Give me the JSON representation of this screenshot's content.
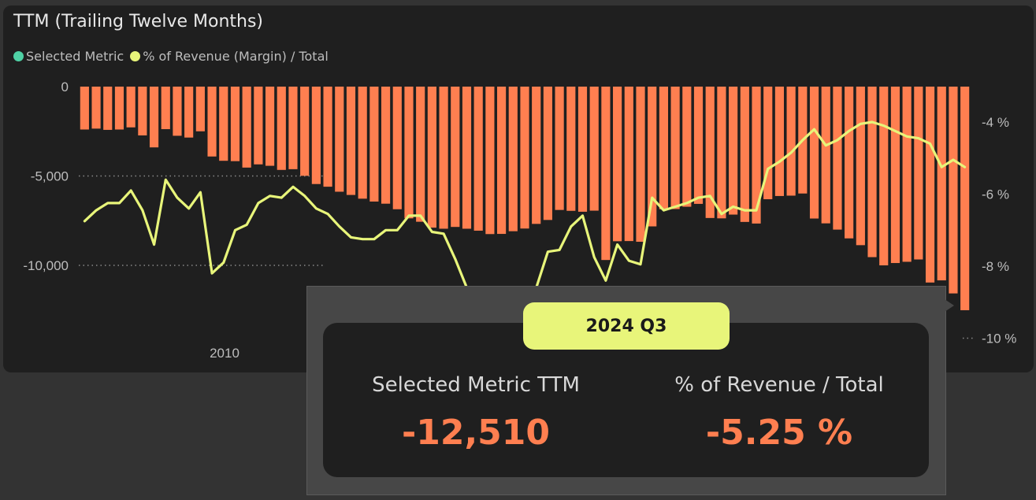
{
  "title": "TTM (Trailing Twelve Months)",
  "legend": [
    {
      "label": "Selected Metric",
      "color": "#4fd1a5"
    },
    {
      "label": "% of Revenue (Margin) / Total",
      "color": "#e8f57a"
    }
  ],
  "colors": {
    "bar": "#ff7f50",
    "line": "#e8f57a",
    "axis_text": "#bdbdbd",
    "value": "#ff7f50"
  },
  "chart_data": {
    "type": "bar+line",
    "x_tick_labels": [
      "2010"
    ],
    "y_left": {
      "ticks": [
        0,
        -5000,
        -10000
      ],
      "tick_labels": [
        "0",
        "-5,000",
        "-10,000"
      ],
      "range": [
        -13130,
        0
      ]
    },
    "y_right": {
      "ticks": [
        -4,
        -6,
        -8,
        -10
      ],
      "tick_labels": [
        "-4 %",
        "-6 %",
        "-8 %",
        "-10 %"
      ],
      "range": [
        -10,
        -3
      ]
    },
    "series": [
      {
        "name": "Selected Metric",
        "type": "bar",
        "axis": "left",
        "values": [
          -2400,
          -2350,
          -2420,
          -2400,
          -2280,
          -2730,
          -3400,
          -2380,
          -2750,
          -2850,
          -2500,
          -3910,
          -4150,
          -4170,
          -4530,
          -4350,
          -4430,
          -4660,
          -4620,
          -4990,
          -5450,
          -5600,
          -5880,
          -6060,
          -6270,
          -6430,
          -6550,
          -6860,
          -7370,
          -7560,
          -7890,
          -7950,
          -7850,
          -7950,
          -8060,
          -8250,
          -8240,
          -8090,
          -7940,
          -7680,
          -7460,
          -6900,
          -6950,
          -7000,
          -6940,
          -9700,
          -8650,
          -8640,
          -8680,
          -7820,
          -6860,
          -6850,
          -6720,
          -6560,
          -7350,
          -7370,
          -7160,
          -7570,
          -7660,
          -6300,
          -6120,
          -6100,
          -5980,
          -7380,
          -7650,
          -8000,
          -8490,
          -8870,
          -9540,
          -10000,
          -9870,
          -9800,
          -9670,
          -10960,
          -10840,
          -11570,
          -12510
        ]
      },
      {
        "name": "% of Revenue (Margin) / Total",
        "type": "line",
        "axis": "right",
        "values": [
          -6.75,
          -6.45,
          -6.25,
          -6.25,
          -5.9,
          -6.45,
          -7.4,
          -5.6,
          -6.1,
          -6.4,
          -5.95,
          -8.2,
          -7.9,
          -7.0,
          -6.85,
          -6.25,
          -6.05,
          -6.1,
          -5.8,
          -6.05,
          -6.4,
          -6.55,
          -6.9,
          -7.2,
          -7.25,
          -7.25,
          -7.0,
          -7.0,
          -6.6,
          -6.6,
          -7.05,
          -7.1,
          -7.8,
          -8.6,
          -9.4,
          -9.8,
          -9.9,
          -9.6,
          -9.3,
          -8.6,
          -7.6,
          -7.55,
          -6.9,
          -6.6,
          -7.75,
          -8.4,
          -7.4,
          -7.85,
          -7.95,
          -6.1,
          -6.45,
          -6.35,
          -6.25,
          -6.1,
          -6.05,
          -6.55,
          -6.35,
          -6.45,
          -6.45,
          -5.3,
          -5.1,
          -4.85,
          -4.5,
          -4.2,
          -4.65,
          -4.5,
          -4.25,
          -4.05,
          -4.0,
          -4.1,
          -4.25,
          -4.4,
          -4.45,
          -4.6,
          -5.25,
          -5.05,
          -5.25
        ]
      }
    ]
  },
  "tooltip": {
    "period": "2024 Q3",
    "metric_label": "Selected Metric TTM",
    "metric_value": "-12,510",
    "pct_label": "% of Revenue / Total",
    "pct_value": "-5.25 %"
  }
}
